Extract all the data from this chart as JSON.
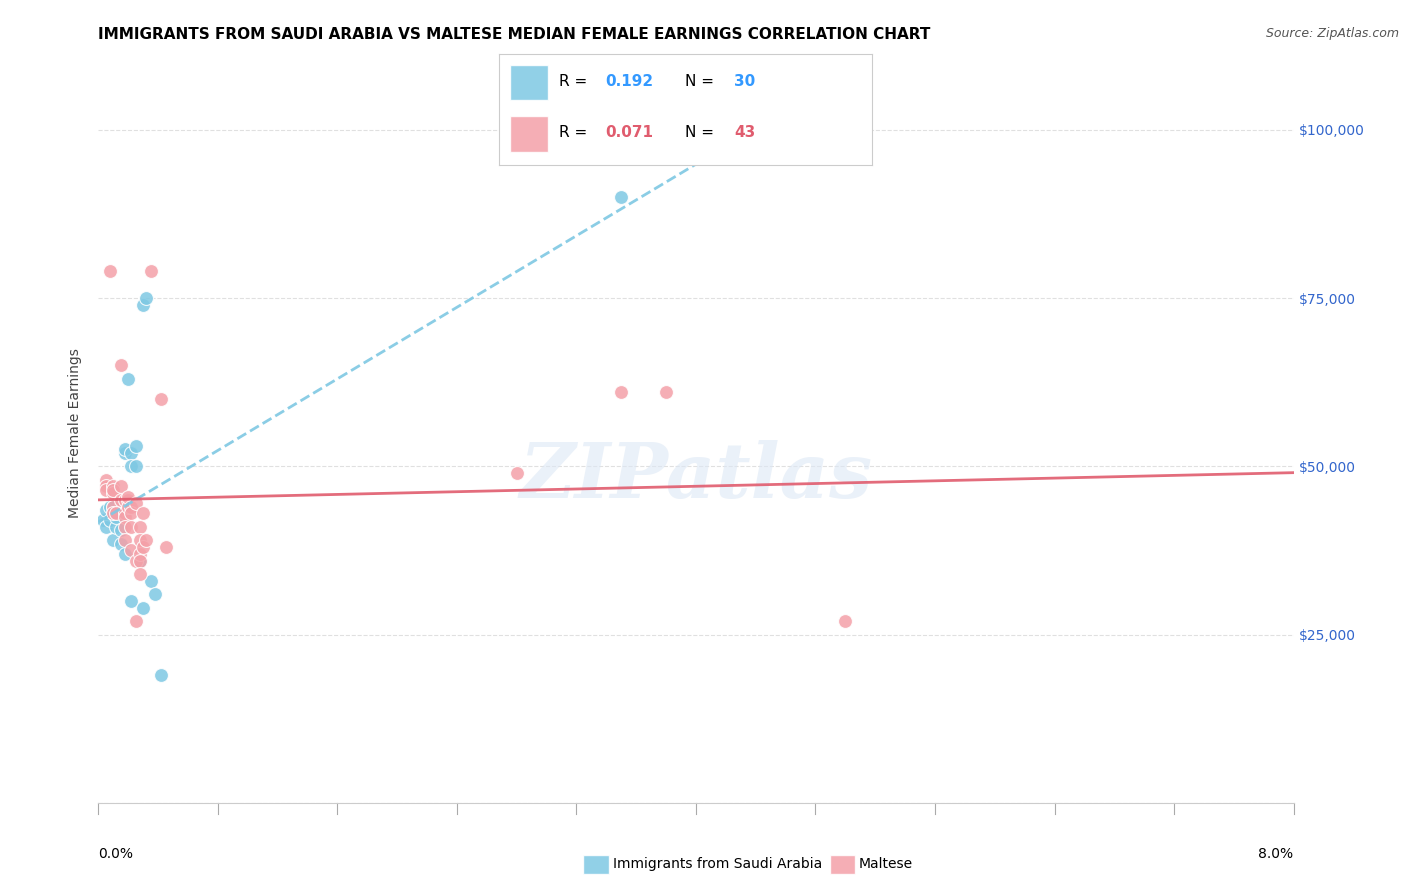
{
  "title": "IMMIGRANTS FROM SAUDI ARABIA VS MALTESE MEDIAN FEMALE EARNINGS CORRELATION CHART",
  "source": "Source: ZipAtlas.com",
  "ylabel": "Median Female Earnings",
  "xlim": [
    0.0,
    0.08
  ],
  "ylim": [
    0,
    110000
  ],
  "yticks": [
    0,
    25000,
    50000,
    75000,
    100000
  ],
  "ytick_labels": [
    "",
    "$25,000",
    "$50,000",
    "$75,000",
    "$100,000"
  ],
  "saudi_color": "#7ec8e3",
  "maltese_color": "#f4a0a8",
  "saudi_line_color": "#7ec8e3",
  "maltese_line_color": "#e05c6e",
  "saudi_R": "0.192",
  "saudi_N": "30",
  "maltese_R": "0.071",
  "maltese_N": "43",
  "legend_R_N_color_saudi": "#3399ff",
  "legend_R_N_color_maltese": "#e05c6e",
  "saudi_scatter": [
    [
      0.0003,
      42000
    ],
    [
      0.0005,
      43500
    ],
    [
      0.0005,
      41000
    ],
    [
      0.0008,
      44000
    ],
    [
      0.0008,
      42000
    ],
    [
      0.001,
      44000
    ],
    [
      0.001,
      43000
    ],
    [
      0.001,
      39000
    ],
    [
      0.0012,
      41000
    ],
    [
      0.0012,
      42500
    ],
    [
      0.0015,
      44500
    ],
    [
      0.0015,
      40500
    ],
    [
      0.0015,
      38500
    ],
    [
      0.0018,
      52000
    ],
    [
      0.0018,
      52500
    ],
    [
      0.0018,
      37000
    ],
    [
      0.002,
      63000
    ],
    [
      0.0022,
      52000
    ],
    [
      0.0022,
      50000
    ],
    [
      0.0022,
      30000
    ],
    [
      0.0025,
      53000
    ],
    [
      0.0025,
      50000
    ],
    [
      0.0028,
      36000
    ],
    [
      0.003,
      74000
    ],
    [
      0.003,
      29000
    ],
    [
      0.0032,
      75000
    ],
    [
      0.0035,
      33000
    ],
    [
      0.0038,
      31000
    ],
    [
      0.0042,
      19000
    ],
    [
      0.035,
      90000
    ]
  ],
  "maltese_scatter": [
    [
      0.0005,
      48000
    ],
    [
      0.0005,
      47000
    ],
    [
      0.0005,
      46500
    ],
    [
      0.0008,
      79000
    ],
    [
      0.001,
      47000
    ],
    [
      0.001,
      46000
    ],
    [
      0.001,
      44000
    ],
    [
      0.001,
      43000
    ],
    [
      0.001,
      46500
    ],
    [
      0.0012,
      43000
    ],
    [
      0.0015,
      47000
    ],
    [
      0.0015,
      65000
    ],
    [
      0.0015,
      45000
    ],
    [
      0.0018,
      45000
    ],
    [
      0.0018,
      43000
    ],
    [
      0.0018,
      42500
    ],
    [
      0.0018,
      41000
    ],
    [
      0.0018,
      39000
    ],
    [
      0.002,
      45000
    ],
    [
      0.002,
      44000
    ],
    [
      0.002,
      45500
    ],
    [
      0.0022,
      44000
    ],
    [
      0.0022,
      43000
    ],
    [
      0.0022,
      41000
    ],
    [
      0.0022,
      37500
    ],
    [
      0.0025,
      36000
    ],
    [
      0.0025,
      27000
    ],
    [
      0.0025,
      44500
    ],
    [
      0.0028,
      41000
    ],
    [
      0.0028,
      39000
    ],
    [
      0.0028,
      37000
    ],
    [
      0.0028,
      36000
    ],
    [
      0.0028,
      34000
    ],
    [
      0.003,
      43000
    ],
    [
      0.003,
      38000
    ],
    [
      0.0032,
      39000
    ],
    [
      0.0035,
      79000
    ],
    [
      0.0042,
      60000
    ],
    [
      0.0045,
      38000
    ],
    [
      0.028,
      49000
    ],
    [
      0.035,
      61000
    ],
    [
      0.038,
      61000
    ],
    [
      0.05,
      27000
    ]
  ],
  "background_color": "#ffffff",
  "grid_color": "#e0e0e0",
  "watermark": "ZIPatlas",
  "title_fontsize": 11,
  "source_fontsize": 9,
  "axis_label_fontsize": 10,
  "tick_fontsize": 10,
  "legend_fontsize": 11,
  "bottom_legend_label1": "Immigrants from Saudi Arabia",
  "bottom_legend_label2": "Maltese"
}
